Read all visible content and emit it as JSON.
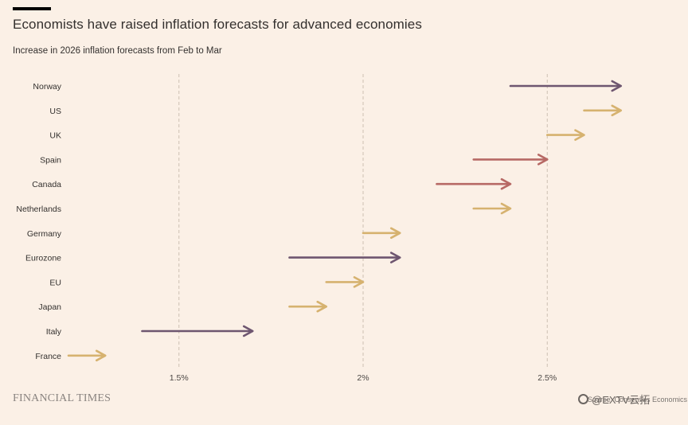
{
  "header": {
    "title": "Economists have raised inflation forecasts for advanced economies",
    "subtitle": "Increase in 2026 inflation forecasts from Feb to Mar"
  },
  "footer": {
    "brand": "FINANCIAL TIMES",
    "source": "Source: Consensus Economics",
    "watermark": "@EXTV云拓"
  },
  "colors": {
    "background": "#fbf0e6",
    "purple": "#6e5670",
    "gold": "#d6b26f",
    "red": "#b76965",
    "grid": "#cdbfb2"
  },
  "chart_data": {
    "type": "arrow",
    "title": "Economists have raised inflation forecasts for advanced economies",
    "subtitle": "Increase in 2026 inflation forecasts from Feb to Mar",
    "xlabel": "",
    "ylabel": "",
    "xlim": [
      1.2,
      2.8
    ],
    "xticks": [
      1.5,
      2.0,
      2.5
    ],
    "xtick_labels": [
      "1.5%",
      "2%",
      "2.5%"
    ],
    "grid": "vertical dashed",
    "series": [
      {
        "name": "Norway",
        "from": 2.4,
        "to": 2.7,
        "color": "purple"
      },
      {
        "name": "US",
        "from": 2.6,
        "to": 2.7,
        "color": "gold"
      },
      {
        "name": "UK",
        "from": 2.5,
        "to": 2.6,
        "color": "gold"
      },
      {
        "name": "Spain",
        "from": 2.3,
        "to": 2.5,
        "color": "red"
      },
      {
        "name": "Canada",
        "from": 2.2,
        "to": 2.4,
        "color": "red"
      },
      {
        "name": "Netherlands",
        "from": 2.3,
        "to": 2.4,
        "color": "gold"
      },
      {
        "name": "Germany",
        "from": 2.0,
        "to": 2.1,
        "color": "gold"
      },
      {
        "name": "Eurozone",
        "from": 1.8,
        "to": 2.1,
        "color": "purple"
      },
      {
        "name": "EU",
        "from": 1.9,
        "to": 2.0,
        "color": "gold"
      },
      {
        "name": "Japan",
        "from": 1.8,
        "to": 1.9,
        "color": "gold"
      },
      {
        "name": "Italy",
        "from": 1.4,
        "to": 1.7,
        "color": "purple"
      },
      {
        "name": "France",
        "from": 1.2,
        "to": 1.3,
        "color": "gold"
      }
    ]
  }
}
